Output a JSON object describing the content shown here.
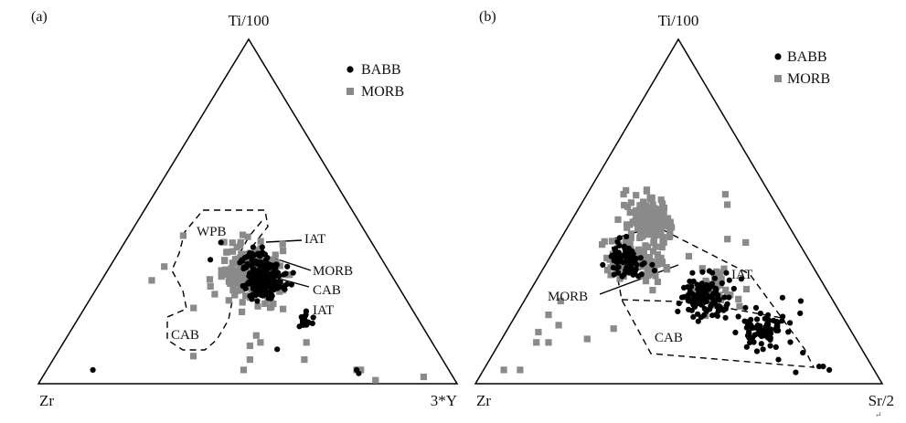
{
  "figure": {
    "corner_mark": "↵"
  },
  "chart_data": [
    {
      "type": "ternary-scatter",
      "panel": "(a)",
      "vertices": {
        "top": "Ti/100",
        "left": "Zr",
        "right": "3*Y"
      },
      "legend": [
        "BABB",
        "MORB"
      ],
      "colors": {
        "BABB": "#000000",
        "MORB": "#8a8a8a"
      },
      "fields": [
        "WPB",
        "IAT",
        "MORB",
        "CAB",
        "IAT",
        "CAB"
      ],
      "series": [
        {
          "name": "BABB",
          "marker": "circle",
          "clusters": [
            {
              "center": [
                0.3,
                0.31,
                0.39
              ],
              "spread": 0.032,
              "count": 170
            },
            {
              "center": [
                0.18,
                0.27,
                0.55
              ],
              "spread": 0.015,
              "count": 18
            },
            {
              "center": [
                0.36,
                0.3,
                0.34
              ],
              "spread": 0.03,
              "count": 35
            }
          ],
          "points": [
            [
              0.04,
              0.85,
              0.11
            ],
            [
              0.04,
              0.22,
              0.74
            ],
            [
              0.03,
              0.22,
              0.75
            ],
            [
              0.1,
              0.38,
              0.52
            ],
            [
              0.41,
              0.36,
              0.23
            ],
            [
              0.36,
              0.41,
              0.23
            ]
          ]
        },
        {
          "name": "MORB",
          "marker": "square",
          "clusters": [
            {
              "center": [
                0.32,
                0.33,
                0.35
              ],
              "spread": 0.052,
              "count": 260
            }
          ],
          "points": [
            [
              0.01,
              0.19,
              0.8
            ],
            [
              0.02,
              0.07,
              0.91
            ],
            [
              0.04,
              0.22,
              0.74
            ],
            [
              0.04,
              0.21,
              0.75
            ],
            [
              0.04,
              0.49,
              0.47
            ],
            [
              0.07,
              0.46,
              0.47
            ],
            [
              0.11,
              0.44,
              0.45
            ],
            [
              0.12,
              0.41,
              0.47
            ],
            [
              0.14,
              0.41,
              0.45
            ],
            [
              0.34,
              0.53,
              0.13
            ],
            [
              0.3,
              0.58,
              0.12
            ],
            [
              0.43,
              0.44,
              0.13
            ],
            [
              0.27,
              0.39,
              0.34
            ],
            [
              0.22,
              0.52,
              0.26
            ],
            [
              0.07,
              0.33,
              0.6
            ],
            [
              0.08,
              0.59,
              0.33
            ],
            [
              0.12,
              0.3,
              0.58
            ]
          ]
        }
      ]
    },
    {
      "type": "ternary-scatter",
      "panel": "(b)",
      "vertices": {
        "top": "Ti/100",
        "left": "Zr",
        "right": "Sr/2"
      },
      "legend": [
        "BABB",
        "MORB"
      ],
      "colors": {
        "BABB": "#000000",
        "MORB": "#8a8a8a"
      },
      "fields": [
        "IAT",
        "MORB",
        "CAB"
      ],
      "series": [
        {
          "name": "BABB",
          "marker": "circle",
          "clusters": [
            {
              "center": [
                0.35,
                0.45,
                0.2
              ],
              "spread": 0.035,
              "count": 80
            },
            {
              "center": [
                0.25,
                0.31,
                0.44
              ],
              "spread": 0.045,
              "count": 110
            },
            {
              "center": [
                0.16,
                0.2,
                0.64
              ],
              "spread": 0.04,
              "count": 80
            }
          ],
          "points": [
            [
              0.05,
              0.13,
              0.82
            ],
            [
              0.05,
              0.12,
              0.83
            ],
            [
              0.04,
              0.11,
              0.85
            ],
            [
              0.07,
              0.22,
              0.71
            ],
            [
              0.09,
              0.15,
              0.76
            ],
            [
              0.24,
              0.08,
              0.68
            ],
            [
              0.25,
              0.12,
              0.63
            ]
          ]
        },
        {
          "name": "MORB",
          "marker": "square",
          "clusters": [
            {
              "center": [
                0.47,
                0.34,
                0.19
              ],
              "spread": 0.04,
              "count": 150
            },
            {
              "center": [
                0.36,
                0.42,
                0.22
              ],
              "spread": 0.045,
              "count": 120
            },
            {
              "center": [
                0.27,
                0.27,
                0.46
              ],
              "spread": 0.04,
              "count": 40
            }
          ],
          "points": [
            [
              0.04,
              0.87,
              0.09
            ],
            [
              0.04,
              0.91,
              0.05
            ],
            [
              0.15,
              0.77,
              0.08
            ],
            [
              0.12,
              0.79,
              0.09
            ],
            [
              0.17,
              0.71,
              0.12
            ],
            [
              0.2,
              0.72,
              0.08
            ],
            [
              0.12,
              0.76,
              0.12
            ],
            [
              0.24,
              0.67,
              0.09
            ],
            [
              0.13,
              0.66,
              0.21
            ],
            [
              0.55,
              0.11,
              0.34
            ],
            [
              0.52,
              0.12,
              0.36
            ],
            [
              0.54,
              0.3,
              0.16
            ],
            [
              0.55,
              0.36,
              0.09
            ],
            [
              0.41,
              0.13,
              0.46
            ],
            [
              0.37,
              0.29,
              0.34
            ],
            [
              0.42,
              0.17,
              0.41
            ],
            [
              0.33,
              0.51,
              0.16
            ],
            [
              0.16,
              0.58,
              0.26
            ]
          ]
        }
      ]
    }
  ]
}
